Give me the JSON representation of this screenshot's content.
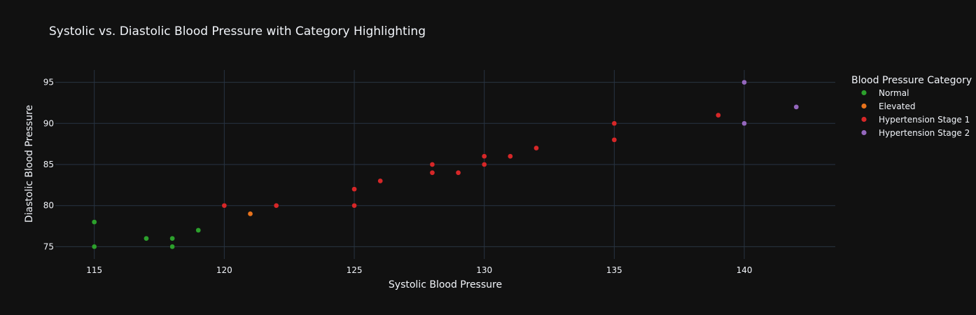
{
  "chart_data": {
    "type": "scatter",
    "title": "Systolic vs. Diastolic Blood Pressure with Category Highlighting",
    "xlabel": "Systolic Blood Pressure",
    "ylabel": "Diastolic Blood Pressure",
    "xlim": [
      113.5,
      143.5
    ],
    "ylim": [
      73.5,
      96.5
    ],
    "xticks": [
      115,
      120,
      125,
      130,
      135,
      140
    ],
    "yticks": [
      75,
      80,
      85,
      90,
      95
    ],
    "grid": true,
    "legend": {
      "title": "Blood Pressure Category",
      "placement": "right"
    },
    "series": [
      {
        "name": "Normal",
        "color": "#2ca02c",
        "x": [
          115,
          115,
          117,
          118,
          118,
          119
        ],
        "y": [
          78,
          75,
          76,
          76,
          75,
          77
        ]
      },
      {
        "name": "Elevated",
        "color": "#e8731c",
        "x": [
          121
        ],
        "y": [
          79
        ]
      },
      {
        "name": "Hypertension Stage 1",
        "color": "#d62728",
        "x": [
          120,
          122,
          125,
          125,
          126,
          128,
          128,
          129,
          130,
          130,
          131,
          132,
          135,
          135,
          139
        ],
        "y": [
          80,
          80,
          82,
          80,
          83,
          85,
          84,
          84,
          86,
          85,
          86,
          87,
          90,
          88,
          91
        ]
      },
      {
        "name": "Hypertension Stage 2",
        "color": "#9467bd",
        "x": [
          140,
          140,
          142
        ],
        "y": [
          95,
          90,
          92
        ]
      }
    ]
  }
}
